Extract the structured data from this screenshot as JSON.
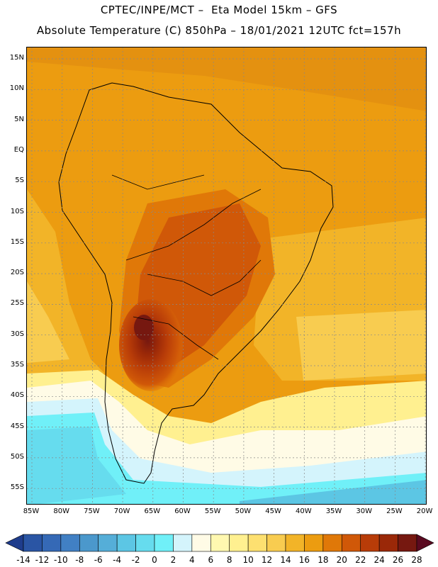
{
  "header": {
    "line1": "CPTEC/INPE/MCT –  Eta Model 15km – GFS",
    "line2": "Absolute Temperature (C) 850hPa – 18/01/2021 12UTC fct=157h"
  },
  "map": {
    "lat_labels": [
      "15N",
      "10N",
      "5N",
      "EQ",
      "5S",
      "10S",
      "15S",
      "20S",
      "25S",
      "30S",
      "35S",
      "40S",
      "45S",
      "50S",
      "55S"
    ],
    "lon_labels": [
      "85W",
      "80W",
      "75W",
      "70W",
      "65W",
      "60W",
      "55W",
      "50W",
      "45W",
      "40W",
      "35W",
      "30W",
      "25W",
      "20W"
    ]
  },
  "colorbar": {
    "labels": [
      "-14",
      "-12",
      "-10",
      "-8",
      "-6",
      "-4",
      "-2",
      "0",
      "2",
      "4",
      "6",
      "8",
      "10",
      "12",
      "14",
      "16",
      "18",
      "20",
      "22",
      "24",
      "26",
      "28"
    ],
    "colors": [
      "#1e3c8c",
      "#2a55a4",
      "#3569b6",
      "#4180c4",
      "#4b98cc",
      "#55aed8",
      "#5cc6e4",
      "#66dcee",
      "#70f0f8",
      "#d4f4fc",
      "#fffbe6",
      "#fff8b0",
      "#fff090",
      "#fde070",
      "#f8cc50",
      "#f2b428",
      "#ec9c10",
      "#e07808",
      "#d05808",
      "#b83c08",
      "#9a2808",
      "#761810",
      "#5a0a20"
    ]
  }
}
